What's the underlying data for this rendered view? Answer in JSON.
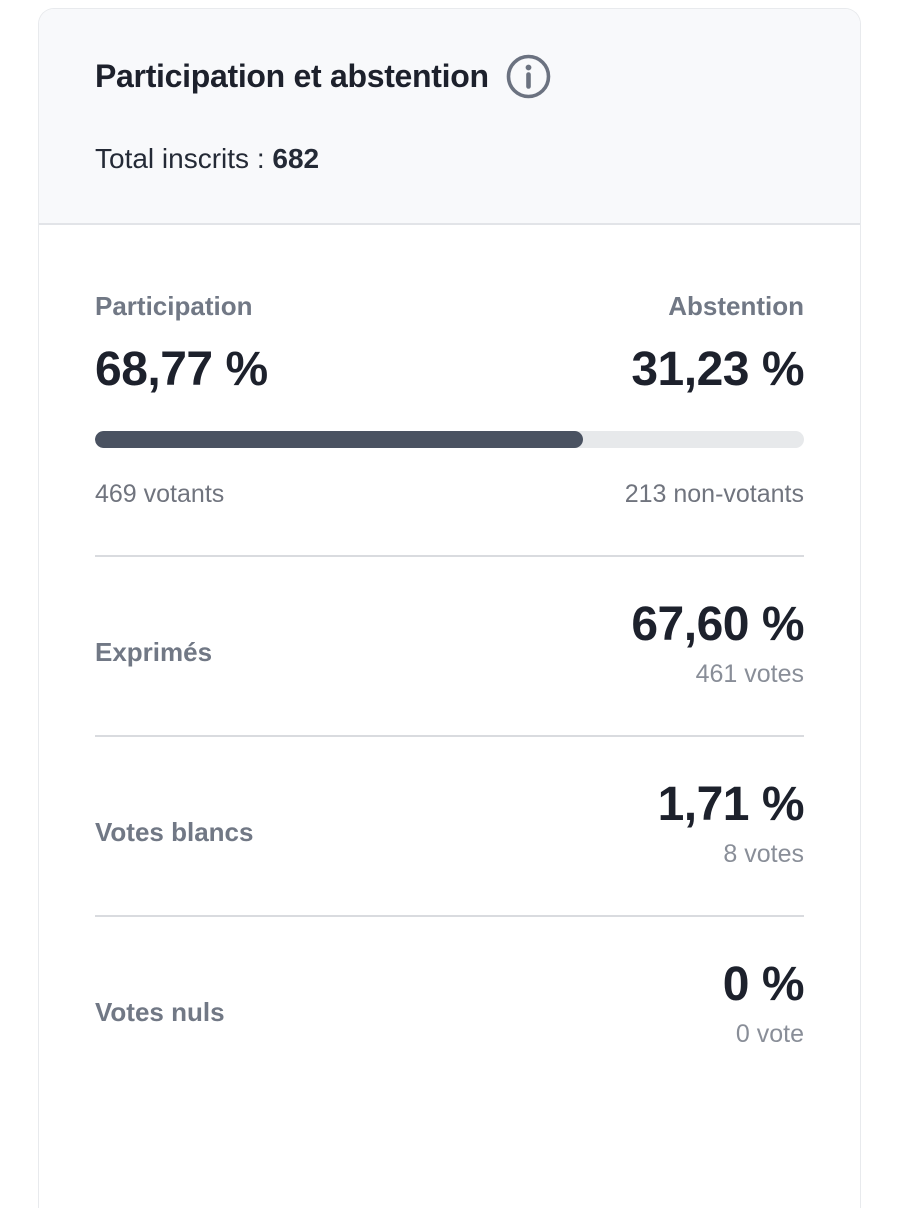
{
  "card": {
    "header": {
      "title": "Participation et abstention",
      "total_label": "Total inscrits :",
      "total_value": "682"
    },
    "participation": {
      "left_label": "Participation",
      "left_percent": "68,77 %",
      "left_sub": "469 votants",
      "right_label": "Abstention",
      "right_percent": "31,23 %",
      "right_sub": "213 non-votants",
      "bar_fill_percent": 68.77
    },
    "rows": [
      {
        "label": "Exprimés",
        "percent": "67,60 %",
        "votes": "461 votes"
      },
      {
        "label": "Votes blancs",
        "percent": "1,71 %",
        "votes": "8 votes"
      },
      {
        "label": "Votes nuls",
        "percent": "0 %",
        "votes": "0 vote"
      }
    ],
    "colors": {
      "bar_fill": "#4a5261",
      "bar_track": "#e7e9eb",
      "text_dark": "#1d212c",
      "text_gray": "#717885",
      "header_bg": "#f8f9fb",
      "divider": "#d9dbdf",
      "card_border": "#e8eaed"
    }
  },
  "chart_data": {
    "type": "bar",
    "title": "Participation et abstention",
    "categories": [
      "Participation",
      "Abstention",
      "Exprimés",
      "Votes blancs",
      "Votes nuls"
    ],
    "values_percent": [
      68.77,
      31.23,
      67.6,
      1.71,
      0
    ],
    "values_count": [
      469,
      213,
      461,
      8,
      0
    ],
    "total_inscrits": 682
  }
}
